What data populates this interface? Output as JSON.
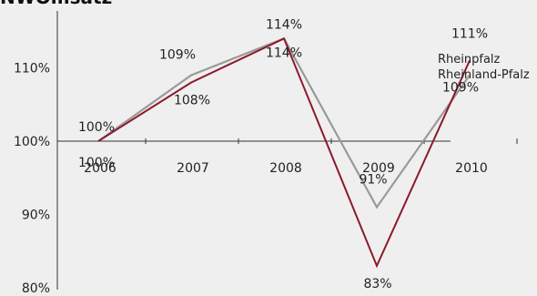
{
  "chart_data": {
    "type": "line",
    "title": "NWOmsatz",
    "xlabel": "",
    "ylabel": "",
    "categories": [
      "2006",
      "2007",
      "2008",
      "2009",
      "2010"
    ],
    "ylim": [
      80,
      117
    ],
    "yticks": [
      80,
      90,
      100,
      110
    ],
    "ytick_labels": [
      "80%",
      "90%",
      "100%",
      "110%"
    ],
    "grid": false,
    "series": [
      {
        "name": "Rheinpfalz",
        "color": "#8b1a2b",
        "values": [
          100,
          108,
          114,
          83,
          111
        ],
        "labels": [
          "100%",
          "108%",
          "114%",
          "83%",
          "111%"
        ]
      },
      {
        "name": "Rheinland-Pfalz",
        "color": "#9a9a9a",
        "values": [
          100,
          109,
          114,
          91,
          109
        ],
        "labels": [
          "100%",
          "109%",
          "114%",
          "91%",
          "109%"
        ]
      }
    ]
  }
}
